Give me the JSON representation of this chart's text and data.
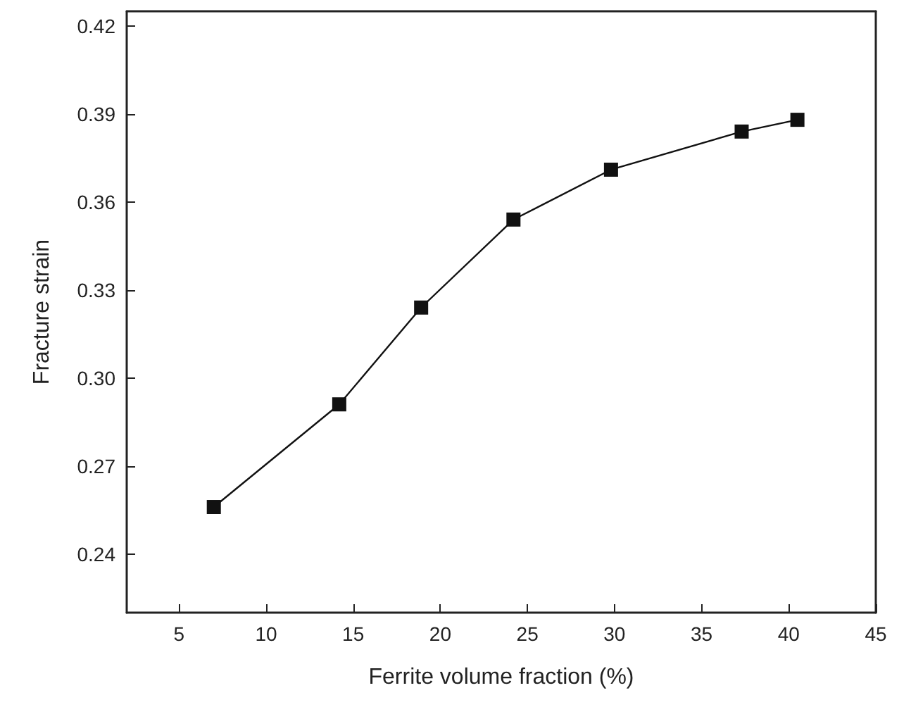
{
  "chart_data": {
    "type": "line",
    "xlabel": "Ferrite volume fraction (%)",
    "ylabel": "Fracture strain",
    "x": [
      7.0,
      14.2,
      18.9,
      24.2,
      29.8,
      37.3,
      40.5
    ],
    "series": [
      {
        "color": "#111111",
        "values": [
          0.256,
          0.291,
          0.324,
          0.354,
          0.371,
          0.384,
          0.388
        ]
      }
    ],
    "xlim": [
      2,
      45
    ],
    "xticks": [
      5,
      10,
      15,
      20,
      25,
      30,
      35,
      40,
      45
    ],
    "ylim": [
      0.22,
      0.425
    ],
    "yticks": [
      {
        "value": 0.24,
        "label": "0.24"
      },
      {
        "value": 0.27,
        "label": "0.27"
      },
      {
        "value": 0.3,
        "label": "0.30"
      },
      {
        "value": 0.33,
        "label": "0.33"
      },
      {
        "value": 0.36,
        "label": "0.36"
      },
      {
        "value": 0.39,
        "label": "0.39"
      },
      {
        "value": 0.42,
        "label": "0.42"
      }
    ],
    "marker": "square",
    "line_style": "solid"
  }
}
